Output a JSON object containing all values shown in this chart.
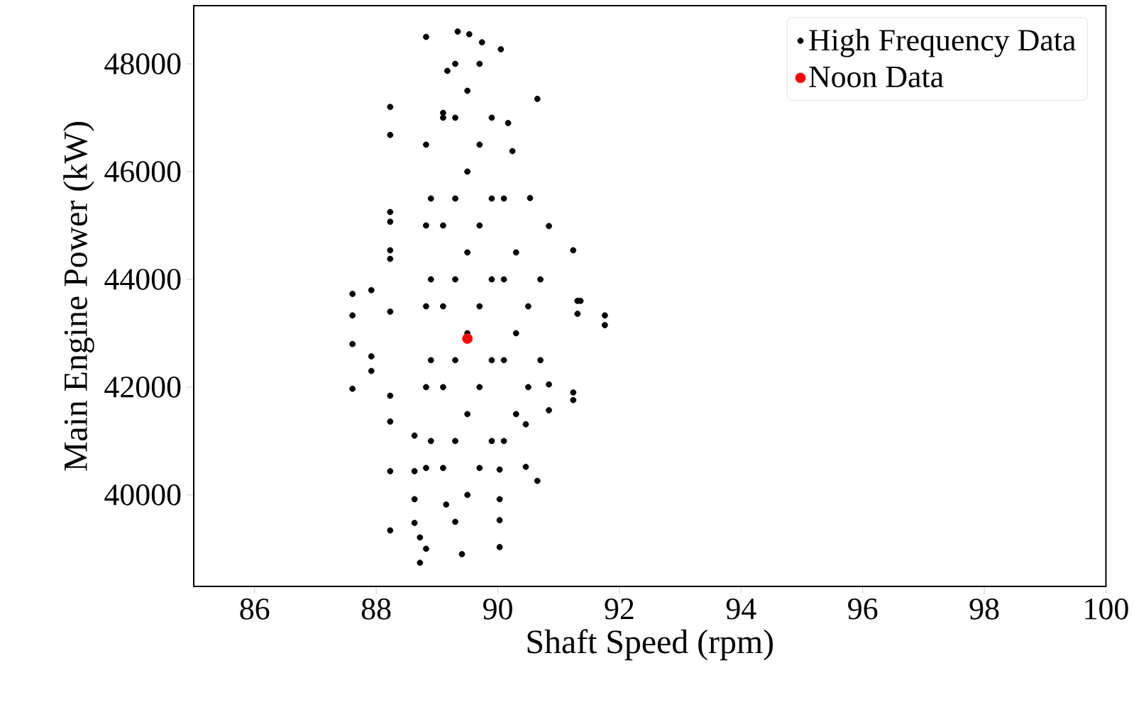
{
  "chart_data": {
    "type": "scatter",
    "xlabel": "Shaft Speed (rpm)",
    "ylabel": "Main Engine Power (kW)",
    "xlim": [
      85,
      100
    ],
    "xticks": [
      86,
      88,
      90,
      92,
      94,
      96,
      98,
      100
    ],
    "ylim": [
      38300,
      49080
    ],
    "yticks": [
      40000,
      42000,
      44000,
      46000,
      48000
    ],
    "grid": false,
    "legend": "top right",
    "series": [
      {
        "name": "High Frequency Data",
        "color": "#000000",
        "x": [
          87.61,
          87.61,
          87.61,
          87.61,
          87.92,
          87.92,
          87.92,
          88.23,
          88.23,
          88.23,
          88.23,
          88.23,
          88.23,
          88.23,
          88.23,
          88.23,
          88.23,
          88.23,
          88.63,
          88.63,
          88.63,
          88.63,
          88.72,
          88.72,
          88.82,
          88.82,
          88.82,
          88.82,
          88.82,
          88.82,
          88.82,
          88.9,
          88.9,
          88.9,
          88.9,
          89.1,
          89.1,
          89.1,
          89.1,
          89.1,
          89.1,
          89.15,
          89.17,
          89.3,
          89.3,
          89.3,
          89.3,
          89.3,
          89.3,
          89.3,
          89.34,
          89.41,
          89.5,
          89.5,
          89.5,
          89.5,
          89.5,
          89.5,
          89.53,
          89.7,
          89.7,
          89.7,
          89.7,
          89.7,
          89.7,
          89.74,
          89.9,
          89.9,
          89.9,
          89.9,
          89.9,
          90.03,
          90.03,
          90.03,
          90.03,
          90.05,
          90.1,
          90.1,
          90.1,
          90.1,
          90.17,
          90.24,
          90.3,
          90.3,
          90.3,
          90.46,
          90.46,
          90.5,
          90.5,
          90.53,
          90.65,
          90.65,
          90.7,
          90.7,
          90.84,
          90.84,
          90.84,
          91.24,
          91.24,
          91.24,
          91.31,
          91.31,
          91.36,
          91.76,
          91.76
        ],
        "values": [
          43730,
          43330,
          42800,
          41970,
          43800,
          42570,
          42300,
          47200,
          46680,
          45250,
          45070,
          44540,
          44380,
          43400,
          41840,
          41360,
          40440,
          39340,
          41100,
          40440,
          39920,
          39480,
          39210,
          38740,
          39000,
          40500,
          42000,
          43500,
          45000,
          46500,
          48500,
          41000,
          42500,
          44000,
          45500,
          40500,
          42000,
          43500,
          45000,
          47000,
          47090,
          39820,
          47870,
          39500,
          41000,
          42500,
          44000,
          45500,
          47000,
          48000,
          48600,
          38900,
          40000,
          41500,
          43000,
          44500,
          46000,
          47500,
          48550,
          40500,
          42000,
          43500,
          45000,
          46500,
          48000,
          48400,
          41000,
          42500,
          44000,
          45500,
          47000,
          40470,
          39920,
          39530,
          39030,
          48270,
          41000,
          42500,
          44000,
          45500,
          46900,
          46380,
          41500,
          43000,
          44500,
          41310,
          40520,
          42000,
          43500,
          45510,
          47350,
          40260,
          42500,
          44000,
          44990,
          42050,
          41570,
          44540,
          41900,
          41760,
          43600,
          43360,
          43600,
          43330,
          43150
        ]
      },
      {
        "name": "Noon Data",
        "color": "#ff0000",
        "x": [
          89.5
        ],
        "values": [
          42900
        ]
      }
    ]
  }
}
